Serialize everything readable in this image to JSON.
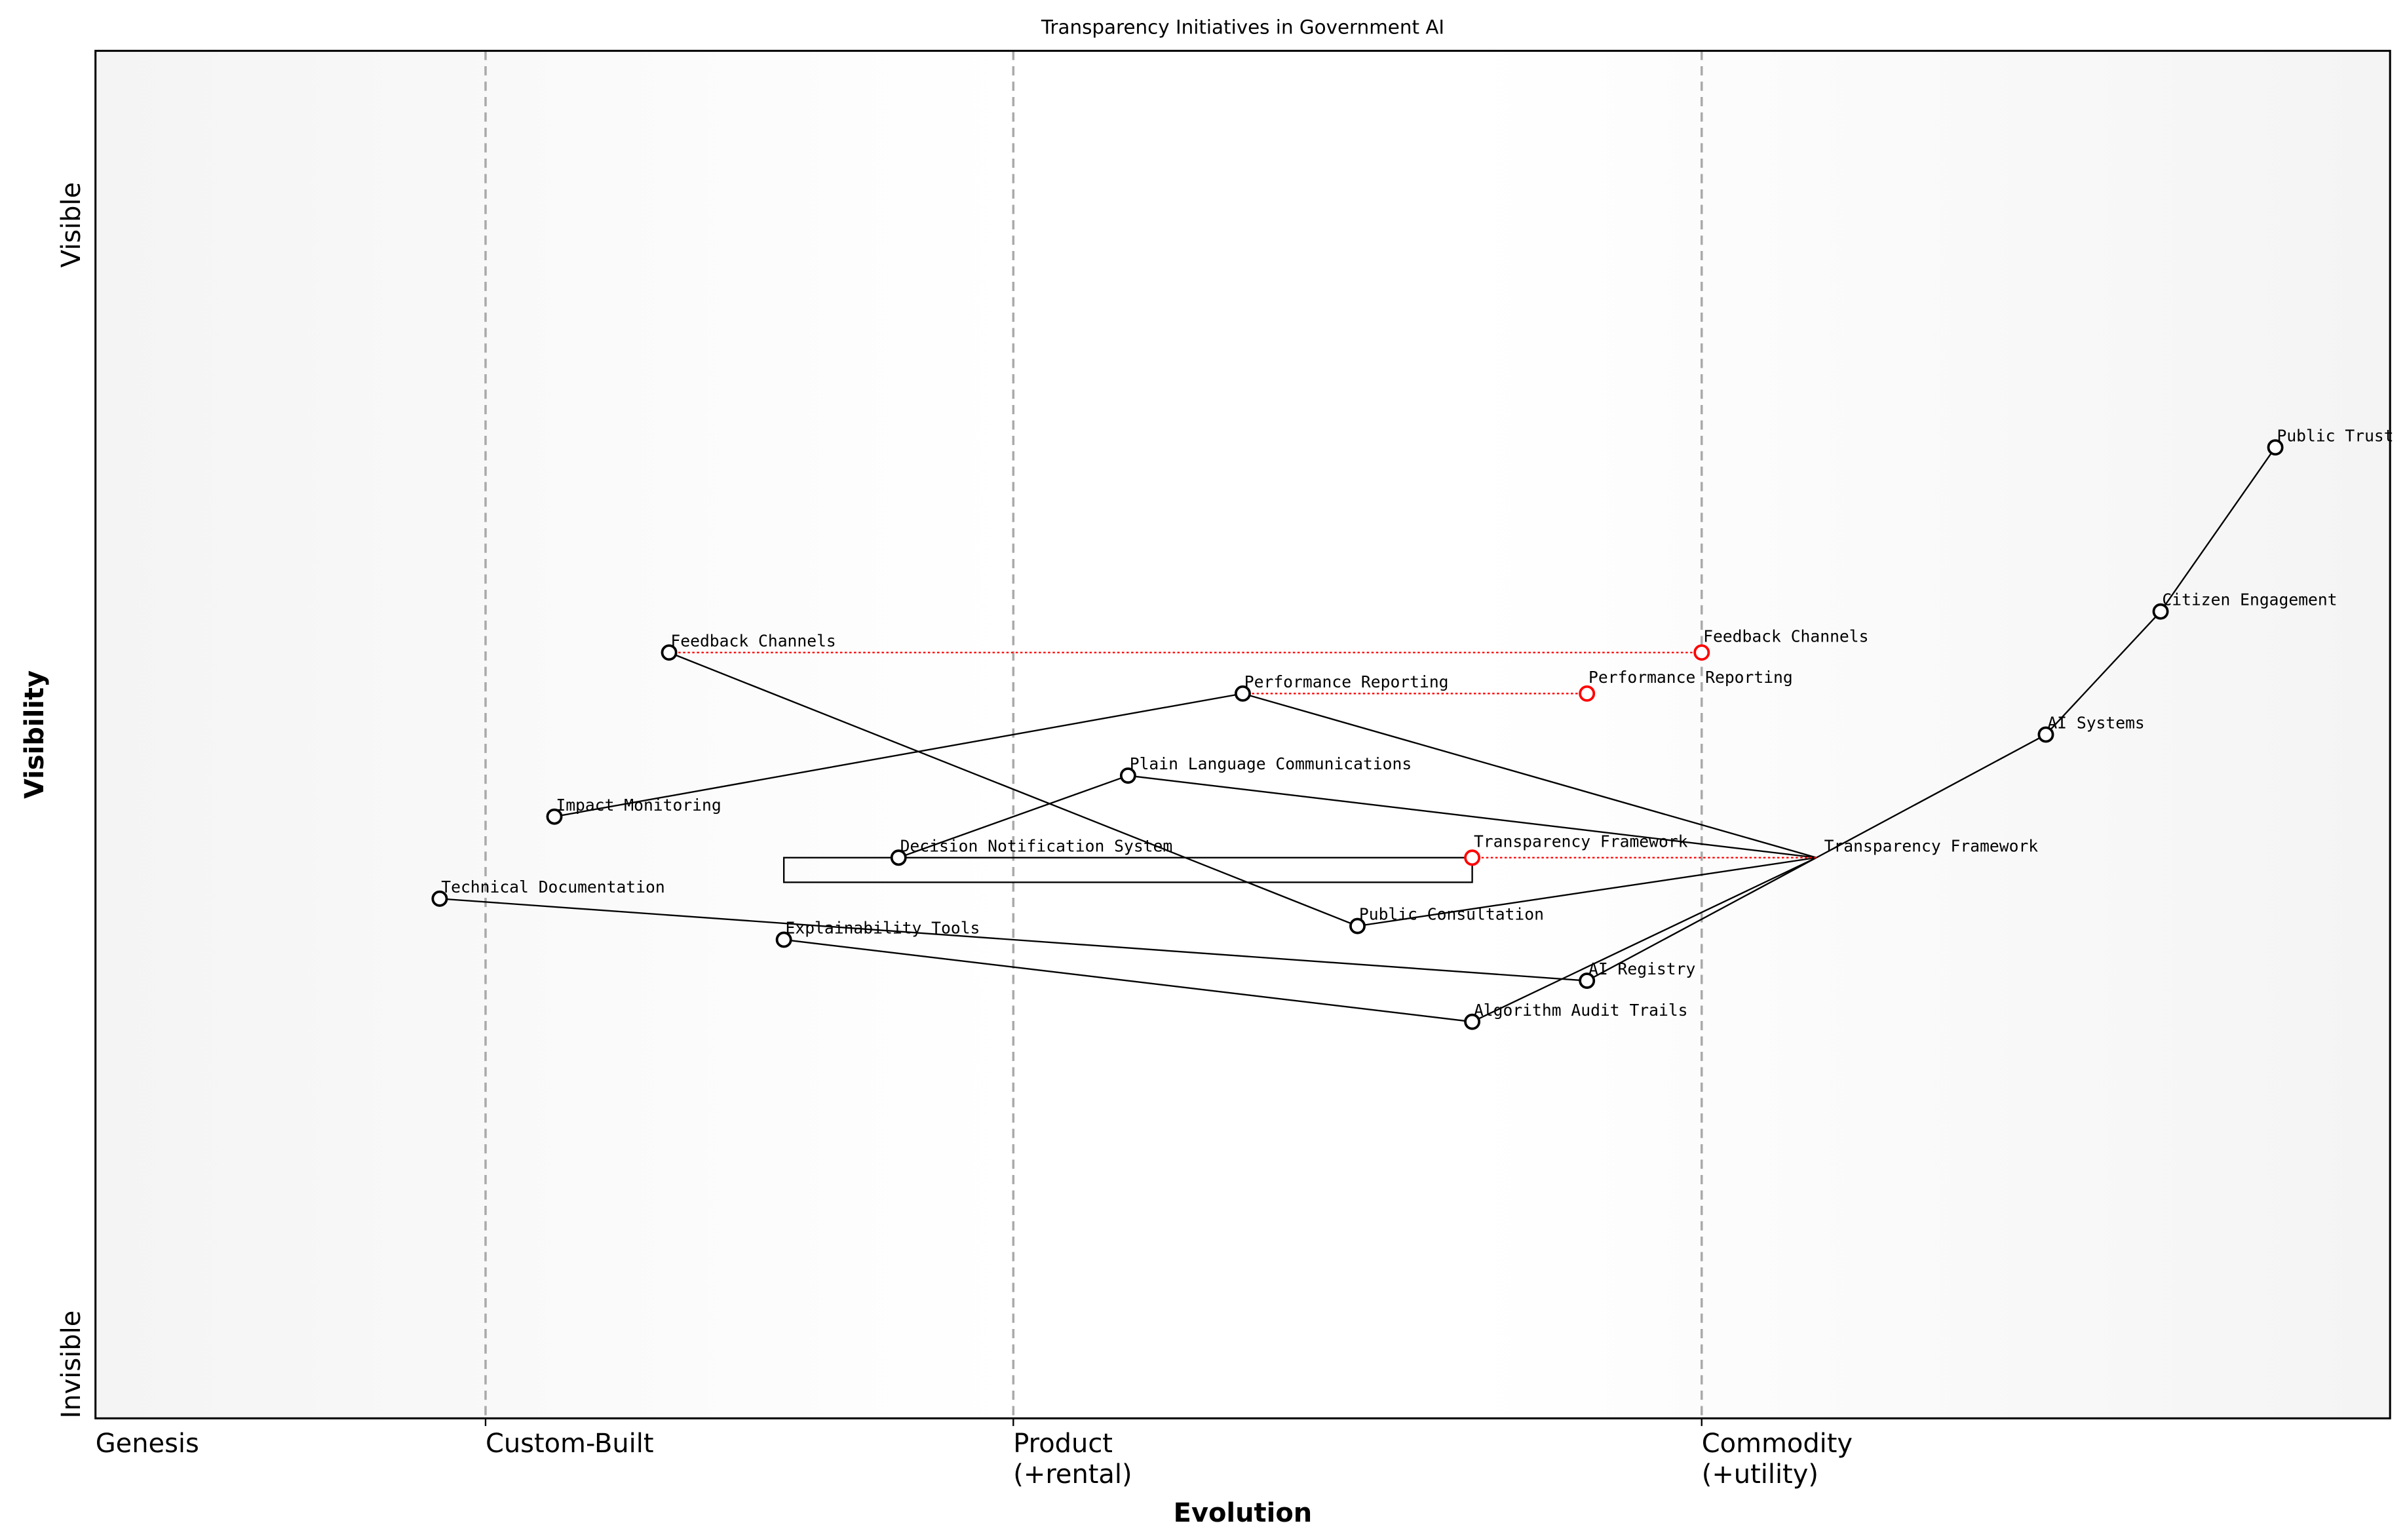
{
  "title": "Transparency Initiatives in Government AI",
  "axes": {
    "x_label": "Evolution",
    "y_label": "Visibility",
    "y_top": "Visible",
    "y_bottom": "Invisible",
    "stages": [
      {
        "label": "Genesis",
        "sub": "",
        "evolution": 0.0
      },
      {
        "label": "Custom-Built",
        "sub": "",
        "evolution": 0.17
      },
      {
        "label": "Product",
        "sub": "(+rental)",
        "evolution": 0.4
      },
      {
        "label": "Commodity",
        "sub": "(+utility)",
        "evolution": 0.7
      }
    ]
  },
  "colors": {
    "node": "#000000",
    "evolve": "#ff0000",
    "stage_line": "#aaaaaa",
    "background_edge": "#f5f5f5"
  },
  "components": [
    {
      "name": "Public Trust",
      "evolution": 0.95,
      "visibility": 0.71
    },
    {
      "name": "Citizen Engagement",
      "evolution": 0.9,
      "visibility": 0.59
    },
    {
      "name": "AI Systems",
      "evolution": 0.85,
      "visibility": 0.5
    },
    {
      "name": "Transparency Framework",
      "evolution": 0.75,
      "visibility": 0.41,
      "marker": false
    },
    {
      "name": "Feedback Channels",
      "evolution": 0.25,
      "visibility": 0.56
    },
    {
      "name": "Performance Reporting",
      "evolution": 0.5,
      "visibility": 0.53
    },
    {
      "name": "Plain Language Communications",
      "evolution": 0.45,
      "visibility": 0.47
    },
    {
      "name": "Impact Monitoring",
      "evolution": 0.2,
      "visibility": 0.44
    },
    {
      "name": "Decision Notification System",
      "evolution": 0.35,
      "visibility": 0.41
    },
    {
      "name": "Technical Documentation",
      "evolution": 0.15,
      "visibility": 0.38
    },
    {
      "name": "Public Consultation",
      "evolution": 0.55,
      "visibility": 0.36
    },
    {
      "name": "Explainability Tools",
      "evolution": 0.3,
      "visibility": 0.35
    },
    {
      "name": "AI Registry",
      "evolution": 0.65,
      "visibility": 0.32
    },
    {
      "name": "Algorithm Audit Trails",
      "evolution": 0.6,
      "visibility": 0.29
    }
  ],
  "links": [
    [
      "Public Trust",
      "Citizen Engagement"
    ],
    [
      "Citizen Engagement",
      "AI Systems"
    ],
    [
      "AI Systems",
      "Transparency Framework"
    ],
    [
      "Transparency Framework",
      "Performance Reporting"
    ],
    [
      "Transparency Framework",
      "Plain Language Communications"
    ],
    [
      "Transparency Framework",
      "Public Consultation"
    ],
    [
      "Transparency Framework",
      "AI Registry"
    ],
    [
      "Transparency Framework",
      "Algorithm Audit Trails"
    ],
    [
      "Feedback Channels",
      "Public Consultation"
    ],
    [
      "Impact Monitoring",
      "Performance Reporting"
    ],
    [
      "Plain Language Communications",
      "Decision Notification System"
    ],
    [
      "Technical Documentation",
      "AI Registry"
    ],
    [
      "Explainability Tools",
      "Algorithm Audit Trails"
    ]
  ],
  "evolve": [
    {
      "name": "Feedback Channels",
      "to": 0.7
    },
    {
      "name": "Performance Reporting",
      "to": 0.65
    },
    {
      "name": "Transparency Framework",
      "to": 0.6
    }
  ],
  "pipelines": [
    {
      "name": "Transparency Framework",
      "start": 0.3,
      "end": 0.6,
      "visibility": 0.41
    }
  ]
}
